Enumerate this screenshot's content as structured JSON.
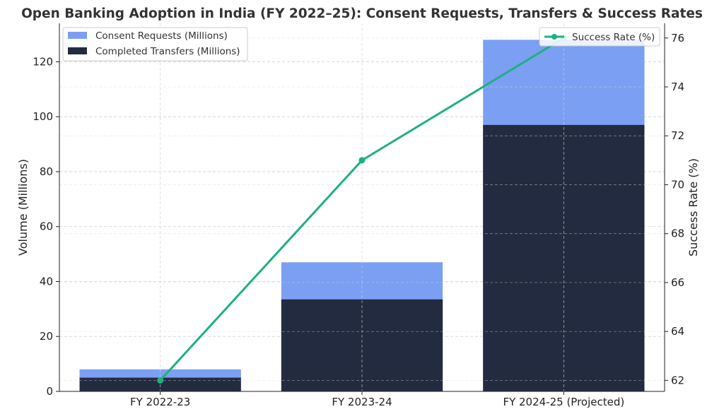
{
  "chart_data": {
    "type": "bar",
    "title": "Open Banking Adoption in India (FY 2022–25): Consent Requests, Transfers & Success Rates",
    "categories": [
      "FY 2022-23",
      "FY 2023-24",
      "FY 2024-25 (Projected)"
    ],
    "series": [
      {
        "name": "Consent Requests (Millions)",
        "type": "bar",
        "axis": "left",
        "values": [
          8,
          47,
          128
        ],
        "color": "#7b9ff2"
      },
      {
        "name": "Completed Transfers (Millions)",
        "type": "bar",
        "axis": "left",
        "values": [
          5,
          33.5,
          97
        ],
        "color": "#222b3f"
      },
      {
        "name": "Success Rate (%)",
        "type": "line",
        "axis": "right",
        "values": [
          62,
          71,
          76
        ],
        "color": "#1eb17f"
      }
    ],
    "ylabel": "Volume (Millions)",
    "ylim": [
      0,
      134
    ],
    "yticks": [
      0,
      20,
      40,
      60,
      80,
      100,
      120
    ],
    "y2label": "Success Rate (%)",
    "y2lim": [
      61.55,
      76.6
    ],
    "y2ticks": [
      62,
      64,
      66,
      68,
      70,
      72,
      74,
      76
    ],
    "grid": true,
    "legend_left_placement": "top-left",
    "legend_right_placement": "top-right"
  }
}
